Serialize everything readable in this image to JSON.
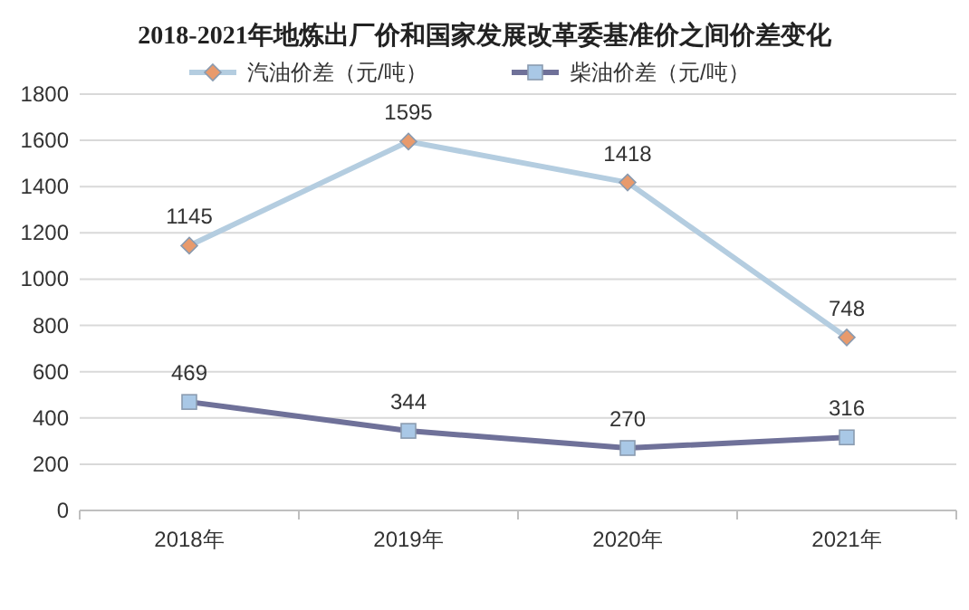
{
  "chart_data": {
    "type": "line",
    "title": "2018-2021年地炼出厂价和国家发展改革委基准价之间价差变化",
    "categories": [
      "2018年",
      "2019年",
      "2020年",
      "2021年"
    ],
    "series": [
      {
        "name": "汽油价差（元/吨）",
        "color": "#b4cde0",
        "colors": [
          "#e89a6c",
          "#e89a6c",
          "#e89a6c",
          "#e89a6c"
        ],
        "marker": "diamond",
        "values": [
          1145,
          1595,
          1418,
          748
        ]
      },
      {
        "name": "柴油价差（元/吨）",
        "color": "#6f7199",
        "colors": [
          "#a9c8e6",
          "#a9c8e6",
          "#a9c8e6",
          "#a9c8e6"
        ],
        "marker": "square",
        "values": [
          469,
          344,
          270,
          316
        ]
      }
    ],
    "ylim": [
      0,
      1800
    ],
    "yticks": [
      0,
      200,
      400,
      600,
      800,
      1000,
      1200,
      1400,
      1600,
      1800
    ],
    "grid": "y",
    "legend": "top",
    "data_labels": true,
    "line_style": "solid"
  }
}
